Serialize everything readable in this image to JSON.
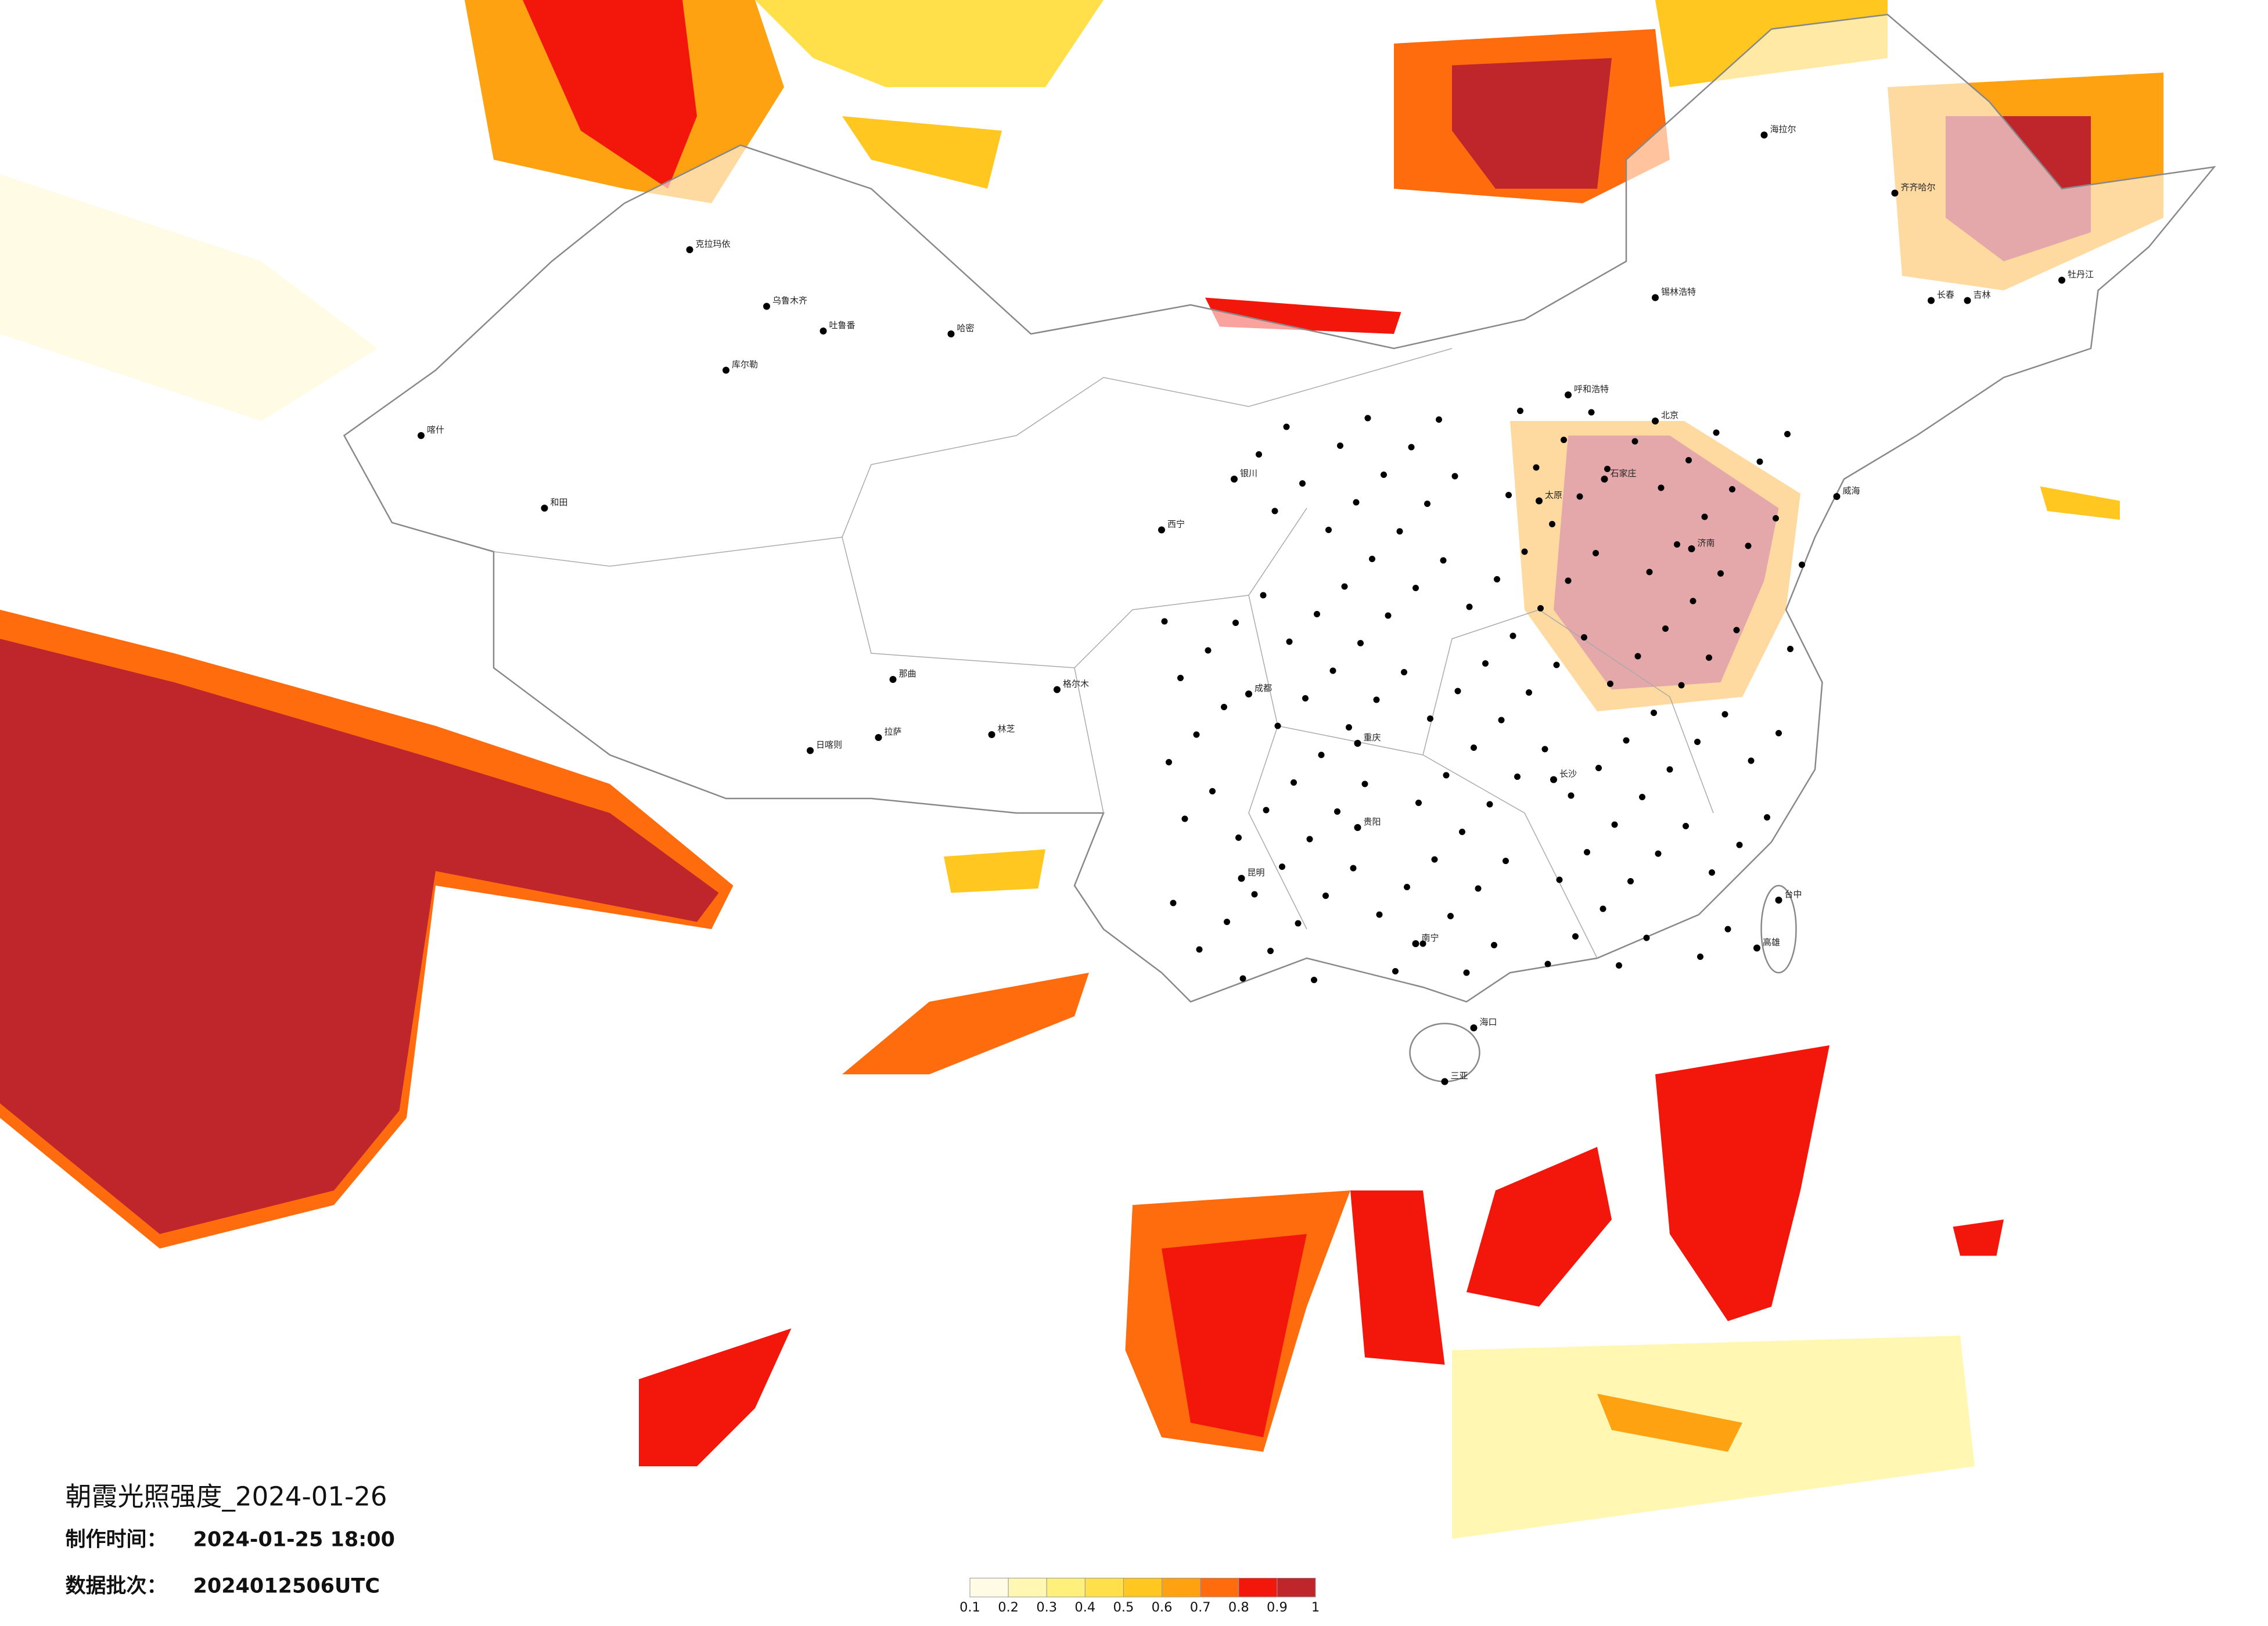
{
  "title": "朝霞光照强度_2024-01-26",
  "info": [
    {
      "label": "制作时间：",
      "value": "2024-01-25 18:00"
    },
    {
      "label": "数据批次：",
      "value": "2024012506UTC"
    }
  ],
  "legend": {
    "ticks": [
      0.1,
      0.2,
      0.3,
      0.4,
      0.5,
      0.6,
      0.7,
      0.8,
      0.9,
      1
    ],
    "colors": [
      "#fffbe4",
      "#fff7b2",
      "#fff07c",
      "#ffe04a",
      "#ffc720",
      "#ffa212",
      "#ff6c0e",
      "#f3170b",
      "#bf262c"
    ]
  },
  "cities": [
    {
      "name": "克拉玛依"
    },
    {
      "name": "乌鲁木齐"
    },
    {
      "name": "吐鲁番"
    },
    {
      "name": "哈密"
    },
    {
      "name": "库尔勒"
    },
    {
      "name": "喀什"
    },
    {
      "name": "和田"
    },
    {
      "name": "格尔木"
    },
    {
      "name": "那曲"
    },
    {
      "name": "拉萨"
    },
    {
      "name": "日喀则"
    },
    {
      "name": "林芝"
    },
    {
      "name": "西宁"
    },
    {
      "name": "银川"
    },
    {
      "name": "呼和浩特"
    },
    {
      "name": "北京"
    },
    {
      "name": "石家庄"
    },
    {
      "name": "太原"
    },
    {
      "name": "济南"
    },
    {
      "name": "威海"
    },
    {
      "name": "海拉尔"
    },
    {
      "name": "齐齐哈尔"
    },
    {
      "name": "锡林浩特"
    },
    {
      "name": "长春"
    },
    {
      "name": "吉林"
    },
    {
      "name": "牡丹江"
    },
    {
      "name": "成都"
    },
    {
      "name": "重庆"
    },
    {
      "name": "贵阳"
    },
    {
      "name": "昆明"
    },
    {
      "name": "长沙"
    },
    {
      "name": "南宁"
    },
    {
      "name": "海口"
    },
    {
      "name": "三亚"
    },
    {
      "name": "台中"
    },
    {
      "name": "高雄"
    }
  ]
}
